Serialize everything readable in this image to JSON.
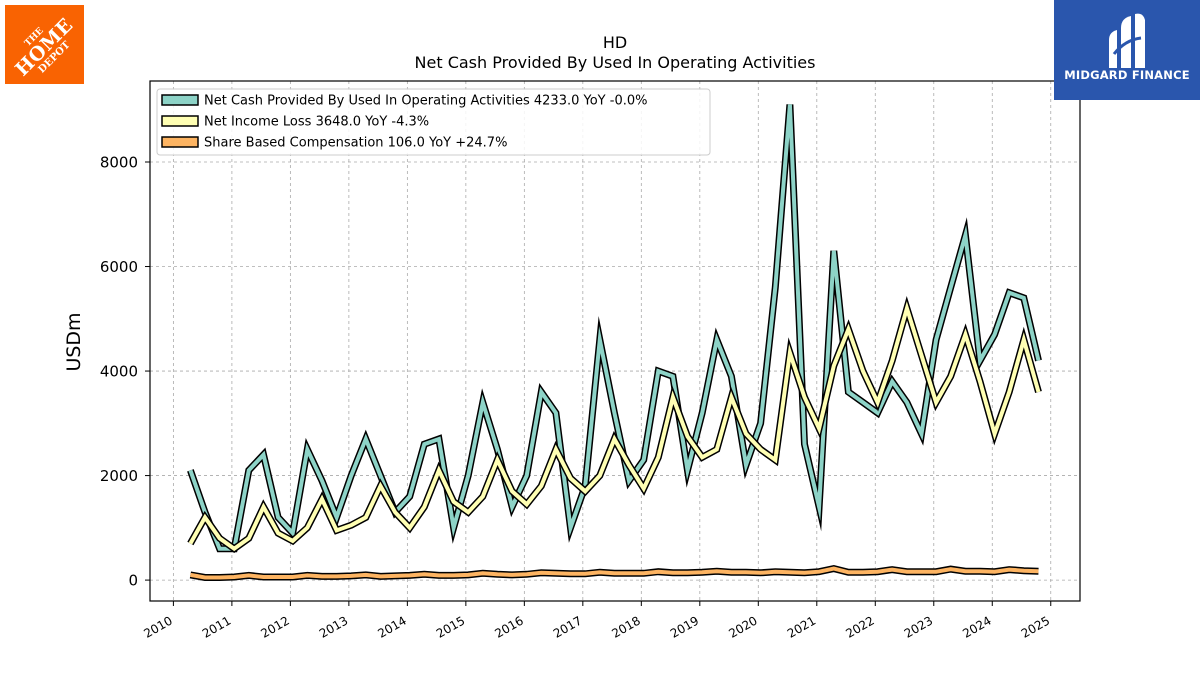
{
  "chart_data": {
    "type": "line",
    "title": "HD",
    "subtitle": "Net Cash Provided By Used In Operating Activities",
    "ylabel": "USDm",
    "xlabel": "",
    "xlim": [
      2009.6,
      2025.5
    ],
    "ylim": [
      -400,
      9550
    ],
    "x_ticks": [
      "2010",
      "2011",
      "2012",
      "2013",
      "2014",
      "2015",
      "2016",
      "2017",
      "2018",
      "2019",
      "2020",
      "2021",
      "2022",
      "2023",
      "2024",
      "2025"
    ],
    "y_ticks": [
      0,
      2000,
      4000,
      6000,
      8000
    ],
    "grid": true,
    "legend_position": "top-left",
    "x": [
      2010.29,
      2010.54,
      2010.79,
      2011.04,
      2011.29,
      2011.54,
      2011.79,
      2012.04,
      2012.29,
      2012.54,
      2012.79,
      2013.04,
      2013.29,
      2013.54,
      2013.79,
      2014.04,
      2014.29,
      2014.54,
      2014.79,
      2015.04,
      2015.29,
      2015.54,
      2015.79,
      2016.04,
      2016.29,
      2016.54,
      2016.79,
      2017.04,
      2017.29,
      2017.54,
      2017.79,
      2018.04,
      2018.29,
      2018.54,
      2018.79,
      2019.04,
      2019.29,
      2019.54,
      2019.79,
      2020.04,
      2020.29,
      2020.54,
      2020.79,
      2021.04,
      2021.29,
      2021.54,
      2021.79,
      2022.04,
      2022.29,
      2022.54,
      2022.79,
      2023.04,
      2023.29,
      2023.54,
      2023.79,
      2024.04,
      2024.29,
      2024.54,
      2024.79
    ],
    "series": [
      {
        "name": "Net Cash Provided By Used In Operating Activities",
        "legend": "Net Cash Provided By Used In Operating Activities  4233.0 YoY -0.0%",
        "color": "#8dd3c7",
        "values": [
          2100,
          1300,
          600,
          600,
          2100,
          2400,
          1200,
          900,
          2500,
          1900,
          1200,
          2000,
          2700,
          2000,
          1300,
          1600,
          2600,
          2700,
          1000,
          2000,
          3400,
          2500,
          1400,
          2000,
          3600,
          3200,
          1000,
          1800,
          4600,
          3200,
          1900,
          2300,
          4000,
          3900,
          2100,
          3200,
          4600,
          3900,
          2200,
          3000,
          5600,
          9100,
          2600,
          1400,
          6300,
          3600,
          3400,
          3200,
          3800,
          3400,
          2800,
          4600,
          5600,
          6600,
          4200,
          4700,
          5500,
          5400,
          4200
        ]
      },
      {
        "name": "Net Income Loss",
        "legend": "Net Income Loss  3648.0 YoY -4.3%",
        "color": "#ffffb3",
        "values": [
          700,
          1200,
          800,
          600,
          800,
          1400,
          900,
          750,
          1000,
          1550,
          950,
          1050,
          1200,
          1800,
          1300,
          1000,
          1400,
          2100,
          1500,
          1300,
          1600,
          2300,
          1700,
          1450,
          1800,
          2500,
          1950,
          1700,
          2000,
          2700,
          2200,
          1750,
          2350,
          3500,
          2750,
          2350,
          2500,
          3500,
          2800,
          2500,
          2300,
          4350,
          3500,
          2900,
          4100,
          4800,
          4000,
          3400,
          4200,
          5200,
          4300,
          3400,
          3900,
          4700,
          3800,
          2800,
          3600,
          4600,
          3600
        ]
      },
      {
        "name": "Share Based Compensation",
        "legend": "Share Based Compensation  106.0 YoY +24.7%",
        "color": "#fdb462",
        "values": [
          100,
          50,
          50,
          60,
          90,
          60,
          60,
          60,
          90,
          70,
          70,
          80,
          100,
          70,
          80,
          90,
          110,
          90,
          90,
          100,
          130,
          110,
          100,
          110,
          140,
          130,
          120,
          120,
          150,
          130,
          130,
          130,
          160,
          140,
          140,
          150,
          170,
          150,
          150,
          140,
          160,
          150,
          140,
          160,
          220,
          150,
          150,
          160,
          200,
          160,
          160,
          160,
          210,
          170,
          170,
          160,
          200,
          180,
          170
        ]
      }
    ]
  },
  "logos": {
    "left_brand": [
      "THE",
      "HOME",
      "DEPOT"
    ],
    "left_brand_color": "#f96302",
    "right_brand": "MIDGARD FINANCE",
    "right_brand_color": "#2a56ad"
  }
}
